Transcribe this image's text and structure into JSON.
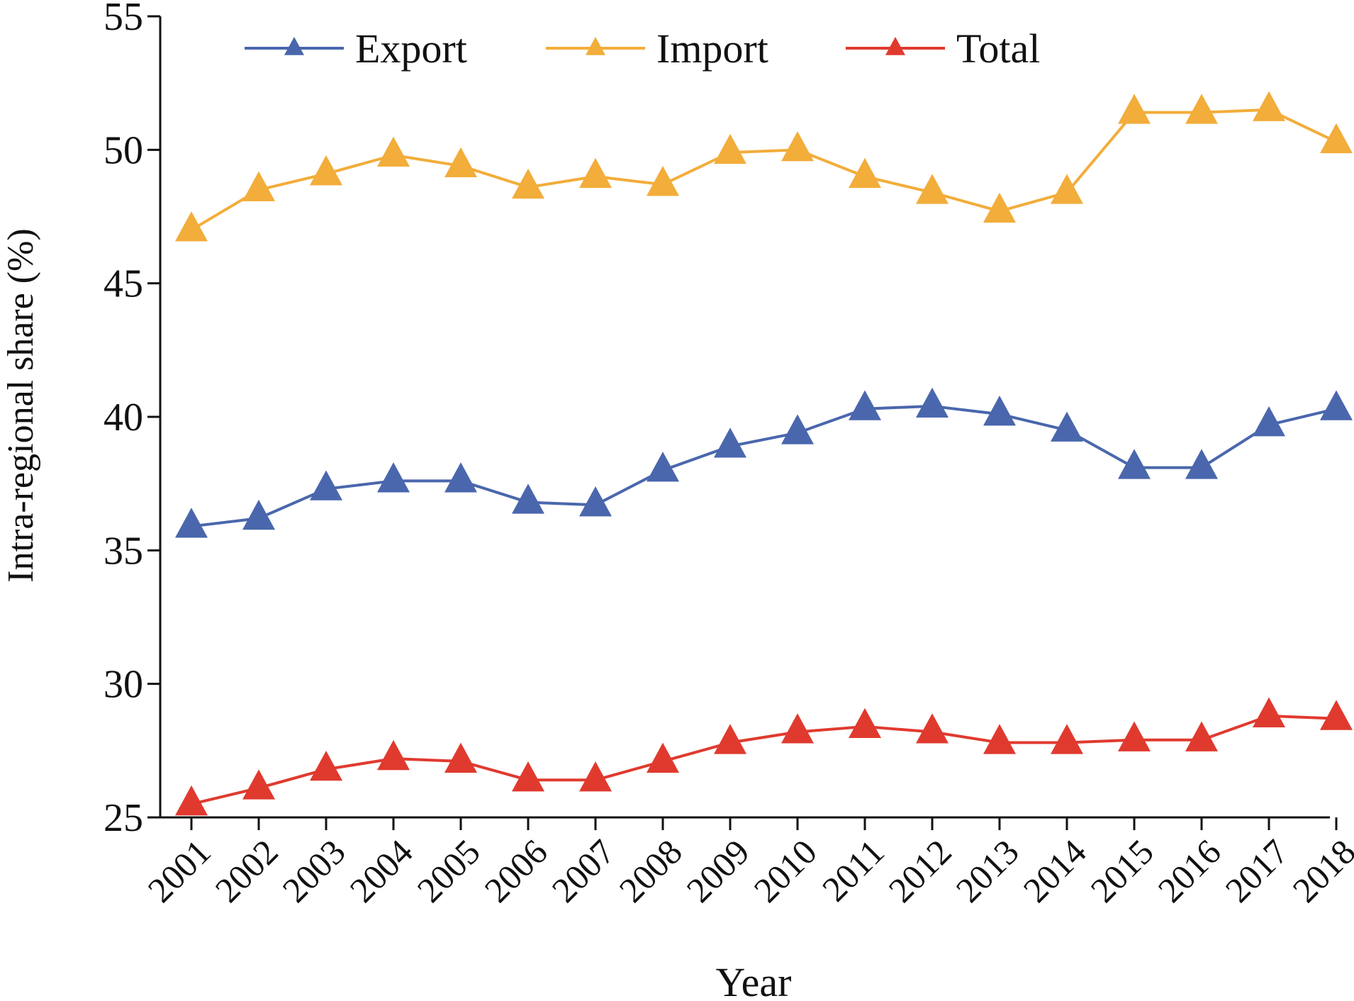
{
  "chart_data": {
    "type": "line",
    "title": "",
    "xlabel": "Year",
    "ylabel": "Intra-regional share (%)",
    "ylim": [
      25,
      55
    ],
    "yticks": [
      25,
      30,
      35,
      40,
      45,
      50,
      55
    ],
    "grid": false,
    "legend_position": "top",
    "categories": [
      "2001",
      "2002",
      "2003",
      "2004",
      "2005",
      "2006",
      "2007",
      "2008",
      "2009",
      "2010",
      "2011",
      "2012",
      "2013",
      "2014",
      "2015",
      "2016",
      "2017",
      "2018"
    ],
    "series": [
      {
        "name": "Export",
        "color": "#4a67ad",
        "marker": "triangle",
        "values": [
          35.9,
          36.2,
          37.3,
          37.6,
          37.6,
          36.8,
          36.7,
          38.0,
          38.9,
          39.4,
          40.3,
          40.4,
          40.1,
          39.5,
          38.1,
          38.1,
          39.7,
          40.3
        ]
      },
      {
        "name": "Import",
        "color": "#f2ad3a",
        "marker": "triangle",
        "values": [
          47.0,
          48.5,
          49.1,
          49.8,
          49.4,
          48.6,
          49.0,
          48.7,
          49.9,
          50.0,
          49.0,
          48.4,
          47.7,
          48.4,
          51.4,
          51.4,
          51.5,
          50.3
        ]
      },
      {
        "name": "Total",
        "color": "#e03a2f",
        "marker": "triangle",
        "values": [
          25.5,
          26.1,
          26.8,
          27.2,
          27.1,
          26.4,
          26.4,
          27.1,
          27.8,
          28.2,
          28.4,
          28.2,
          27.8,
          27.8,
          27.9,
          27.9,
          28.8,
          28.7
        ]
      }
    ]
  }
}
